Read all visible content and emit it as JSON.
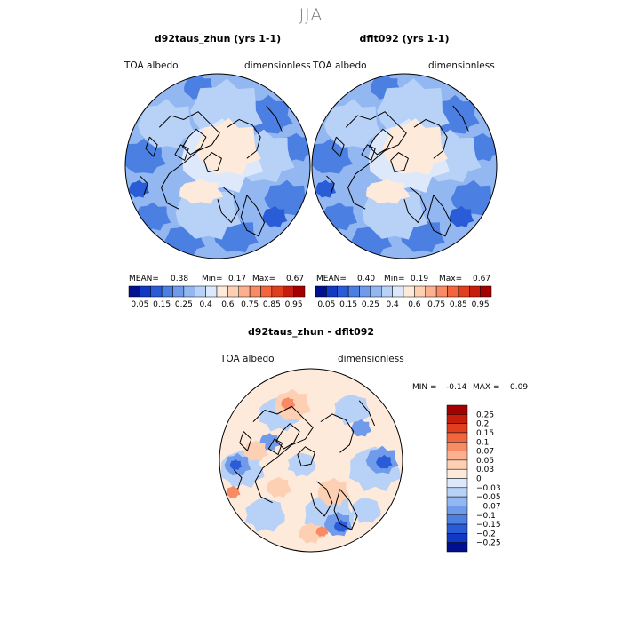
{
  "figure": {
    "season": "JJA",
    "palette": {
      "positive": [
        "#fdeadb",
        "#fdd0b4",
        "#fbb190",
        "#f88a64",
        "#f2663f",
        "#e03f1e",
        "#c71d0d",
        "#a50000"
      ],
      "negative": [
        "#dde9fb",
        "#b8d1f7",
        "#93b7f1",
        "#6f9bea",
        "#4c7fe2",
        "#2a5cd8",
        "#1039c4",
        "#00108e"
      ],
      "border": "#000000"
    }
  },
  "chart_data": [
    {
      "type": "heatmap",
      "projection": "north-polar-stereographic",
      "title": "d92taus_zhun (yrs 1-1)",
      "variable": "TOA albedo",
      "units": "dimensionless",
      "stats": {
        "mean_label": "MEAN=",
        "mean": "0.38",
        "min_label": "Min=",
        "min": "0.17",
        "max_label": "Max=",
        "max": "0.67"
      },
      "colorbar_ticks": [
        "0.05",
        "0.15",
        "0.25",
        "0.4",
        "0.6",
        "0.75",
        "0.85",
        "0.95"
      ],
      "colorbar_levels": [
        0.05,
        0.1,
        0.15,
        0.2,
        0.25,
        0.3,
        0.4,
        0.5,
        0.6,
        0.7,
        0.75,
        0.8,
        0.85,
        0.9,
        0.95,
        1.0
      ]
    },
    {
      "type": "heatmap",
      "projection": "north-polar-stereographic",
      "title": "dflt092 (yrs 1-1)",
      "variable": "TOA albedo",
      "units": "dimensionless",
      "stats": {
        "mean_label": "MEAN=",
        "mean": "0.40",
        "min_label": "Min=",
        "min": "0.19",
        "max_label": "Max=",
        "max": "0.67"
      },
      "colorbar_ticks": [
        "0.05",
        "0.15",
        "0.25",
        "0.4",
        "0.6",
        "0.75",
        "0.85",
        "0.95"
      ],
      "colorbar_levels": [
        0.05,
        0.1,
        0.15,
        0.2,
        0.25,
        0.3,
        0.4,
        0.5,
        0.6,
        0.7,
        0.75,
        0.8,
        0.85,
        0.9,
        0.95,
        1.0
      ]
    },
    {
      "type": "heatmap",
      "projection": "north-polar-stereographic",
      "title": "d92taus_zhun - dflt092",
      "variable": "TOA albedo",
      "units": "dimensionless",
      "stats": {
        "min_label": "MIN =",
        "min": "-0.14",
        "max_label": "MAX =",
        "max": "0.09"
      },
      "colorbar_ticks": [
        "0.25",
        "0.2",
        "0.15",
        "0.1",
        "0.07",
        "0.05",
        "0.03",
        "0",
        "-0.03",
        "-0.05",
        "-0.07",
        "-0.1",
        "-0.15",
        "-0.2",
        "-0.25"
      ],
      "colorbar_levels": [
        0.25,
        0.2,
        0.15,
        0.1,
        0.07,
        0.05,
        0.03,
        0,
        -0.03,
        -0.05,
        -0.07,
        -0.1,
        -0.15,
        -0.2,
        -0.25
      ]
    }
  ]
}
